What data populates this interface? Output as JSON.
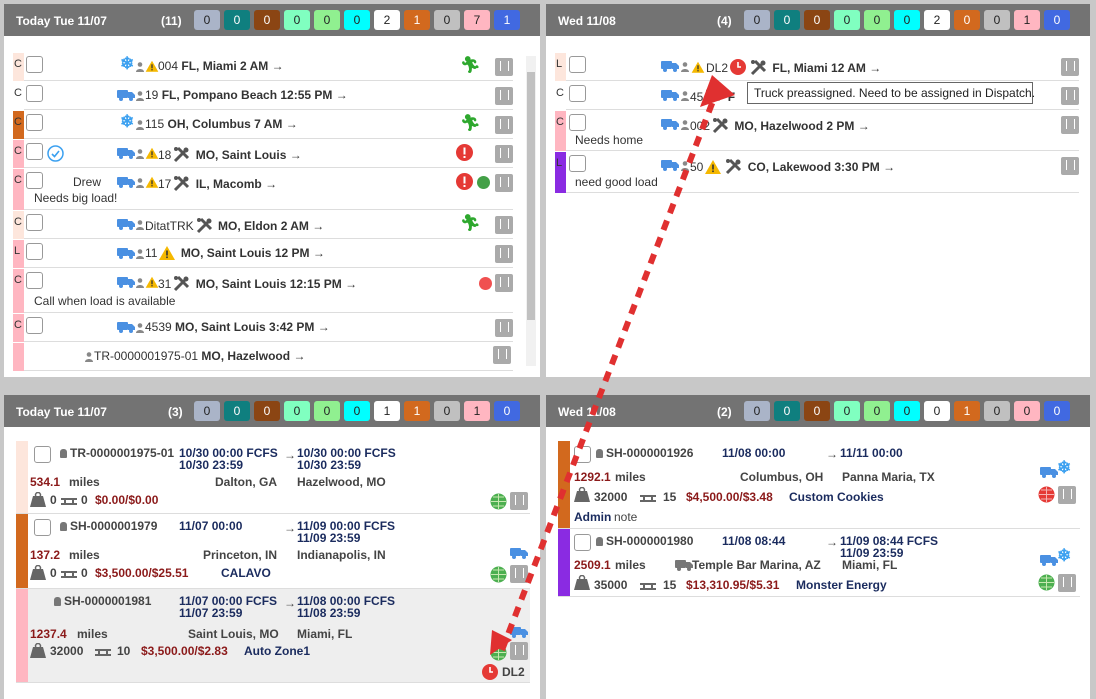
{
  "top_left": {
    "title": "Today Tue 11/07",
    "count": "(11)",
    "chips": [
      {
        "value": "0",
        "color": "#aab4c8"
      },
      {
        "value": "0",
        "color": "#0f7f7f"
      },
      {
        "value": "0",
        "color": "#8b4513"
      },
      {
        "value": "0",
        "color": "#80ffc0"
      },
      {
        "value": "0",
        "color": "#90f090"
      },
      {
        "value": "0",
        "color": "#00ffff"
      },
      {
        "value": "2",
        "color": "#ffffff"
      },
      {
        "value": "1",
        "color": "#d2691e"
      },
      {
        "value": "0",
        "color": "#c0c0c0"
      },
      {
        "value": "7",
        "color": "#ffb6c1"
      },
      {
        "value": "1",
        "color": "#4169e1"
      }
    ],
    "rows": [
      {
        "tag": "C",
        "num": "004",
        "text": "FL, Miami 2 AM",
        "note": ""
      },
      {
        "tag": "C",
        "num": "19",
        "text": "FL, Pompano Beach 12:55 PM",
        "note": ""
      },
      {
        "tag": "C",
        "num": "115",
        "text": "OH, Columbus 7 AM",
        "note": ""
      },
      {
        "tag": "C",
        "num": "18",
        "text": "MO, Saint Louis",
        "note": ""
      },
      {
        "tag": "C",
        "num": "17",
        "text": "IL, Macomb",
        "note": "Needs big load!",
        "driver": "Drew"
      },
      {
        "tag": "C",
        "num": "DitatTRK",
        "text": "MO, Eldon 2 AM",
        "note": ""
      },
      {
        "tag": "L",
        "num": "11",
        "text": "MO, Saint Louis 12 PM",
        "note": ""
      },
      {
        "tag": "C",
        "num": "31",
        "text": "MO, Saint Louis 12:15 PM",
        "note": "Call when load is available"
      },
      {
        "tag": "C",
        "num": "4539",
        "text": "MO, Saint Louis 3:42 PM",
        "note": ""
      },
      {
        "tag": "",
        "num": "TR-0000001975-01",
        "text": "MO, Hazelwood",
        "note": ""
      }
    ]
  },
  "top_right": {
    "title": "Wed 11/08",
    "count": "(4)",
    "chips": [
      {
        "value": "0",
        "color": "#aab4c8"
      },
      {
        "value": "0",
        "color": "#0f7f7f"
      },
      {
        "value": "0",
        "color": "#8b4513"
      },
      {
        "value": "0",
        "color": "#80ffc0"
      },
      {
        "value": "0",
        "color": "#90f090"
      },
      {
        "value": "0",
        "color": "#00ffff"
      },
      {
        "value": "2",
        "color": "#ffffff"
      },
      {
        "value": "0",
        "color": "#d2691e"
      },
      {
        "value": "0",
        "color": "#c0c0c0"
      },
      {
        "value": "1",
        "color": "#ffb6c1"
      },
      {
        "value": "0",
        "color": "#4169e1"
      }
    ],
    "rows": [
      {
        "tag": "L",
        "num": "DL2",
        "text": "FL, Miami 12 AM",
        "note": ""
      },
      {
        "tag": "C",
        "num": "45",
        "text": "F",
        "note": ""
      },
      {
        "tag": "C",
        "num": "002",
        "text": "MO, Hazelwood 2 PM",
        "note": "Needs home"
      },
      {
        "tag": "L",
        "num": "50",
        "text": "CO, Lakewood 3:30 PM",
        "note": "need good load"
      }
    ],
    "tooltip": "Truck preassigned. Need to be assigned in Dispatch."
  },
  "bottom_left": {
    "title": "Today Tue 11/07",
    "count": "(3)",
    "chips": [
      {
        "value": "0",
        "color": "#aab4c8"
      },
      {
        "value": "0",
        "color": "#0f7f7f"
      },
      {
        "value": "0",
        "color": "#8b4513"
      },
      {
        "value": "0",
        "color": "#80ffc0"
      },
      {
        "value": "0",
        "color": "#90f090"
      },
      {
        "value": "0",
        "color": "#00ffff"
      },
      {
        "value": "1",
        "color": "#ffffff"
      },
      {
        "value": "1",
        "color": "#d2691e"
      },
      {
        "value": "0",
        "color": "#c0c0c0"
      },
      {
        "value": "1",
        "color": "#ffb6c1"
      },
      {
        "value": "0",
        "color": "#4169e1"
      }
    ],
    "cards": [
      {
        "id": "TR-0000001975-01",
        "pick": "10/30 00:00 FCFS",
        "pick2": "10/30 23:59",
        "drop": "10/30 00:00 FCFS",
        "drop2": "10/30 23:59",
        "miles": "534.1",
        "from": "Dalton, GA",
        "to": "Hazelwood, MO",
        "weight": "0",
        "pieces": "0",
        "money": "$0.00/$0.00",
        "customer": ""
      },
      {
        "id": "SH-0000001979",
        "pick": "11/07 00:00",
        "pick2": "",
        "drop": "11/09 00:00 FCFS",
        "drop2": "11/09 23:59",
        "miles": "137.2",
        "from": "Princeton, IN",
        "to": "Indianapolis, IN",
        "weight": "0",
        "pieces": "0",
        "money": "$3,500.00/$25.51",
        "customer": "CALAVO"
      },
      {
        "id": "SH-0000001981",
        "pick": "11/07 00:00 FCFS",
        "pick2": "11/07 23:59",
        "drop": "11/08 00:00 FCFS",
        "drop2": "11/08 23:59",
        "miles": "1237.4",
        "from": "Saint Louis, MO",
        "to": "Miami, FL",
        "weight": "32000",
        "pieces": "10",
        "money": "$3,500.00/$2.83",
        "customer": "Auto Zone1",
        "truck": "DL2"
      }
    ]
  },
  "bottom_right": {
    "title": "Wed 11/08",
    "count": "(2)",
    "chips": [
      {
        "value": "0",
        "color": "#aab4c8"
      },
      {
        "value": "0",
        "color": "#0f7f7f"
      },
      {
        "value": "0",
        "color": "#8b4513"
      },
      {
        "value": "0",
        "color": "#80ffc0"
      },
      {
        "value": "0",
        "color": "#90f090"
      },
      {
        "value": "0",
        "color": "#00ffff"
      },
      {
        "value": "0",
        "color": "#ffffff"
      },
      {
        "value": "1",
        "color": "#d2691e"
      },
      {
        "value": "0",
        "color": "#c0c0c0"
      },
      {
        "value": "0",
        "color": "#ffb6c1"
      },
      {
        "value": "0",
        "color": "#4169e1"
      }
    ],
    "cards": [
      {
        "id": "SH-0000001926",
        "pick": "11/08 00:00",
        "drop": "11/11 00:00",
        "drop2": "",
        "miles": "1292.1",
        "from": "Columbus, OH",
        "to": "Panna Maria, TX",
        "weight": "32000",
        "pieces": "15",
        "money": "$4,500.00/$3.48",
        "customer": "Custom Cookies",
        "admin_label": "Admin",
        "admin_note": "note"
      },
      {
        "id": "SH-0000001980",
        "pick": "11/08 08:44",
        "drop": "11/09 08:44 FCFS",
        "drop2": "11/09 23:59",
        "miles": "2509.1",
        "from": "Temple Bar Marina, AZ",
        "to": "Miami, FL",
        "weight": "35000",
        "pieces": "15",
        "money": "$13,310.95/$5.31",
        "customer": "Monster Energy"
      }
    ]
  },
  "labels": {
    "miles": "miles"
  }
}
